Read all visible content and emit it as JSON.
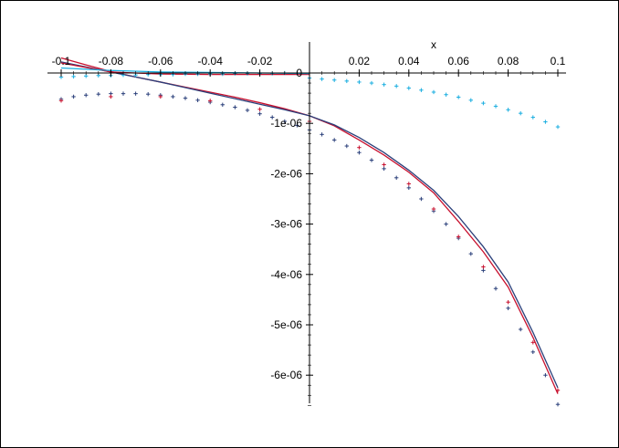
{
  "chart_data": {
    "type": "line",
    "title": "",
    "xlabel": "x",
    "ylabel": "",
    "xlim": [
      -0.1,
      0.1
    ],
    "ylim": [
      -6.8e-06,
      3.5e-07
    ],
    "x_ticks": [
      {
        "value": -0.1,
        "label": "-0.1"
      },
      {
        "value": -0.08,
        "label": "-0.08"
      },
      {
        "value": -0.06,
        "label": "-0.06"
      },
      {
        "value": -0.04,
        "label": "-0.04"
      },
      {
        "value": -0.02,
        "label": "-0.02"
      },
      {
        "value": 0.02,
        "label": "0.02"
      },
      {
        "value": 0.04,
        "label": "0.04"
      },
      {
        "value": 0.06,
        "label": "0.06"
      },
      {
        "value": 0.08,
        "label": "0.08"
      },
      {
        "value": 0.1,
        "label": "0.1"
      }
    ],
    "y_ticks": [
      {
        "value": 0,
        "label": "0"
      },
      {
        "value": -1e-06,
        "label": "-1e-06"
      },
      {
        "value": -2e-06,
        "label": "-2e-06"
      },
      {
        "value": -3e-06,
        "label": "-3e-06"
      },
      {
        "value": -4e-06,
        "label": "-4e-06"
      },
      {
        "value": -5e-06,
        "label": "-5e-06"
      },
      {
        "value": -6e-06,
        "label": "-6e-06"
      }
    ],
    "grid": false,
    "colors": {
      "red": "#c8102e",
      "navy": "#2a3f7a",
      "cyan": "#1aaee0"
    },
    "series": [
      {
        "style": "line",
        "color": "#c8102e",
        "x": [
          -0.1,
          -0.09,
          -0.08,
          -0.07,
          -0.06,
          -0.05,
          -0.04,
          -0.03,
          -0.02,
          -0.01,
          0,
          0.01,
          0.02,
          0.03,
          0.04,
          0.05,
          0.06,
          0.07,
          0.08,
          0.09,
          0.1
        ],
        "y": [
          3e-07,
          1.6e-07,
          3e-08,
          -8e-08,
          -1.8e-07,
          -2.8e-07,
          -3.8e-07,
          -4.8e-07,
          -5.9e-07,
          -7.1e-07,
          -8.5e-07,
          -1.05e-06,
          -1.33e-06,
          -1.63e-06,
          -1.97e-06,
          -2.38e-06,
          -2.95e-06,
          -3.55e-06,
          -4.25e-06,
          -5.25e-06,
          -6.37e-06
        ]
      },
      {
        "style": "line",
        "color": "#2a3f7a",
        "x": [
          -0.1,
          -0.09,
          -0.08,
          -0.07,
          -0.06,
          -0.05,
          -0.04,
          -0.03,
          -0.02,
          -0.01,
          0,
          0.01,
          0.02,
          0.03,
          0.04,
          0.05,
          0.06,
          0.07,
          0.08,
          0.09,
          0.1
        ],
        "y": [
          2.2e-07,
          1.2e-07,
          2e-08,
          -8e-08,
          -1.8e-07,
          -2.9e-07,
          -4e-07,
          -5.1e-07,
          -6.2e-07,
          -7.3e-07,
          -8.5e-07,
          -1.03e-06,
          -1.28e-06,
          -1.58e-06,
          -1.93e-06,
          -2.33e-06,
          -2.85e-06,
          -3.45e-06,
          -4.15e-06,
          -5.15e-06,
          -6.25e-06
        ]
      },
      {
        "style": "line",
        "color": "#c8102e",
        "x": [
          -0.1,
          -0.08,
          -0.06,
          -0.04,
          -0.02,
          0
        ],
        "y": [
          2e-07,
          2e-08,
          -2e-08,
          -3e-08,
          -3e-08,
          -3e-08
        ]
      },
      {
        "style": "line",
        "color": "#1aaee0",
        "x": [
          -0.1,
          -0.08,
          -0.06,
          -0.04,
          -0.02,
          0
        ],
        "y": [
          1e-07,
          5e-08,
          2e-08,
          1e-08,
          0.0,
          -1e-08
        ]
      },
      {
        "style": "points",
        "color": "#1aaee0",
        "x": [
          -0.1,
          -0.095,
          -0.09,
          -0.085,
          -0.08,
          -0.075,
          -0.07,
          -0.065,
          -0.06,
          -0.055,
          -0.05,
          -0.045,
          -0.04,
          -0.035,
          -0.03,
          -0.025,
          -0.02,
          -0.015,
          -0.01,
          -0.005,
          0,
          0.005,
          0.01,
          0.015,
          0.02,
          0.025,
          0.03,
          0.035,
          0.04,
          0.045,
          0.05,
          0.055,
          0.06,
          0.065,
          0.07,
          0.075,
          0.08,
          0.085,
          0.09,
          0.095,
          0.1
        ],
        "y": [
          -8e-08,
          -7e-08,
          -6e-08,
          -5e-08,
          -5e-08,
          -4e-08,
          -4e-08,
          -3e-08,
          -3e-08,
          -3e-08,
          -2e-08,
          -2e-08,
          -2e-08,
          -2e-08,
          -1e-08,
          -1e-08,
          -1e-08,
          -1e-08,
          0.0,
          0.0,
          -1e-07,
          -1.2e-07,
          -1.4e-07,
          -1.6e-07,
          -1.8e-07,
          -2e-07,
          -2.3e-07,
          -2.6e-07,
          -3e-07,
          -3.4e-07,
          -3.8e-07,
          -4.3e-07,
          -4.8e-07,
          -5.4e-07,
          -6e-07,
          -6.6e-07,
          -7.3e-07,
          -8e-07,
          -8.8e-07,
          -9.7e-07,
          -1.07e-06
        ]
      },
      {
        "style": "points",
        "color": "#2a3f7a",
        "x": [
          -0.1,
          -0.095,
          -0.09,
          -0.085,
          -0.08,
          -0.075,
          -0.07,
          -0.065,
          -0.06,
          -0.055,
          -0.05,
          -0.045,
          -0.04,
          -0.035,
          -0.03,
          -0.025,
          -0.02,
          -0.015,
          -0.01,
          -0.005,
          0,
          0.005,
          0.01,
          0.015,
          0.02,
          0.025,
          0.03,
          0.035,
          0.04,
          0.045,
          0.05,
          0.055,
          0.06,
          0.065,
          0.07,
          0.075,
          0.08,
          0.085,
          0.09,
          0.095,
          0.1
        ],
        "y": [
          -5.2e-07,
          -4.7e-07,
          -4.4e-07,
          -4.2e-07,
          -4.1e-07,
          -4.1e-07,
          -4.1e-07,
          -4.2e-07,
          -4.4e-07,
          -4.7e-07,
          -5e-07,
          -5.4e-07,
          -5.8e-07,
          -6.3e-07,
          -6.8e-07,
          -7.4e-07,
          -8.1e-07,
          -8.8e-07,
          -9.6e-07,
          -1.04e-06,
          -1.13e-06,
          -1.22e-06,
          -1.33e-06,
          -1.45e-06,
          -1.58e-06,
          -1.73e-06,
          -1.9e-06,
          -2.08e-06,
          -2.28e-06,
          -2.5e-06,
          -2.74e-06,
          -3e-06,
          -3.28e-06,
          -3.59e-06,
          -3.92e-06,
          -4.28e-06,
          -4.67e-06,
          -5.09e-06,
          -5.54e-06,
          -6e-06,
          -6.58e-06
        ]
      },
      {
        "style": "points",
        "color": "#c8102e",
        "x": [
          -0.1,
          -0.08,
          -0.06,
          -0.04,
          -0.02,
          0,
          0.02,
          0.03,
          0.04,
          0.05,
          0.06,
          0.07,
          0.08,
          0.09,
          0.1
        ],
        "y": [
          -5.5e-07,
          -4.7e-07,
          -4.7e-07,
          -5.5e-07,
          -7.2e-07,
          -9.6e-07,
          -1.48e-06,
          -1.82e-06,
          -2.2e-06,
          -2.7e-06,
          -3.25e-06,
          -3.85e-06,
          -4.55e-06,
          -5.35e-06,
          -6.3e-06
        ]
      }
    ]
  }
}
